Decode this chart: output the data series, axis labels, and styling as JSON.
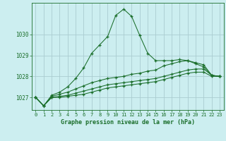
{
  "title": "Graphe pression niveau de la mer (hPa)",
  "background_color": "#cceef0",
  "grid_color": "#aaccd0",
  "line_color": "#1a6e2a",
  "x_ticks": [
    0,
    1,
    2,
    3,
    4,
    5,
    6,
    7,
    8,
    9,
    10,
    11,
    12,
    13,
    14,
    15,
    16,
    17,
    18,
    19,
    20,
    21,
    22,
    23
  ],
  "ylim": [
    1026.4,
    1031.5
  ],
  "yticks": [
    1027,
    1028,
    1029,
    1030
  ],
  "series": [
    [
      1027.0,
      1026.6,
      1027.1,
      1027.25,
      1027.5,
      1027.9,
      1028.4,
      1029.1,
      1029.5,
      1029.9,
      1030.9,
      1031.2,
      1030.85,
      1029.95,
      1029.1,
      1028.75,
      1028.75,
      1028.75,
      1028.8,
      1028.75,
      1028.6,
      1028.45,
      1028.05,
      1028.0
    ],
    [
      1027.0,
      1026.6,
      1027.05,
      1027.15,
      1027.25,
      1027.4,
      1027.55,
      1027.7,
      1027.8,
      1027.9,
      1027.95,
      1028.0,
      1028.1,
      1028.15,
      1028.25,
      1028.3,
      1028.5,
      1028.6,
      1028.7,
      1028.75,
      1028.65,
      1028.55,
      1028.05,
      1028.0
    ],
    [
      1027.0,
      1026.6,
      1027.0,
      1027.05,
      1027.1,
      1027.2,
      1027.3,
      1027.4,
      1027.5,
      1027.6,
      1027.65,
      1027.7,
      1027.75,
      1027.8,
      1027.85,
      1027.9,
      1028.0,
      1028.1,
      1028.2,
      1028.3,
      1028.35,
      1028.35,
      1028.05,
      1028.0
    ],
    [
      1027.0,
      1026.6,
      1027.0,
      1027.0,
      1027.05,
      1027.1,
      1027.15,
      1027.25,
      1027.35,
      1027.45,
      1027.5,
      1027.55,
      1027.6,
      1027.65,
      1027.7,
      1027.75,
      1027.85,
      1027.95,
      1028.05,
      1028.15,
      1028.2,
      1028.2,
      1028.0,
      1028.0
    ]
  ]
}
